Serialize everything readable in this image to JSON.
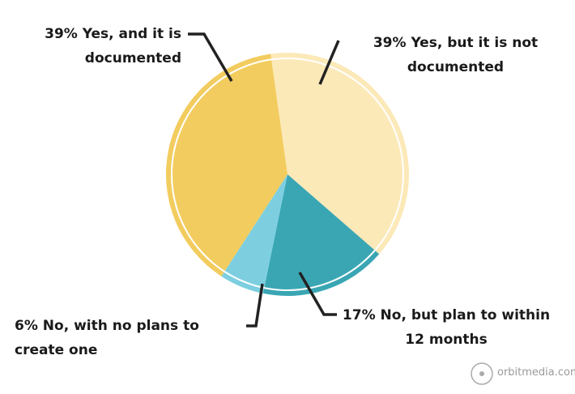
{
  "chart_data": {
    "type": "pie",
    "categories": [
      "Yes, but it is not documented",
      "No, but plan to within 12 months",
      "No, with no plans to create one",
      "Yes, and it is documented"
    ],
    "values": [
      39,
      17,
      6,
      39
    ],
    "value_labels": [
      "39%",
      "17%",
      "6%",
      "39%"
    ],
    "colors": [
      "#fce9b8",
      "#3aa6b4",
      "#7dcfe0",
      "#f2cc5e"
    ]
  },
  "watermark": "orbitmedia.com"
}
